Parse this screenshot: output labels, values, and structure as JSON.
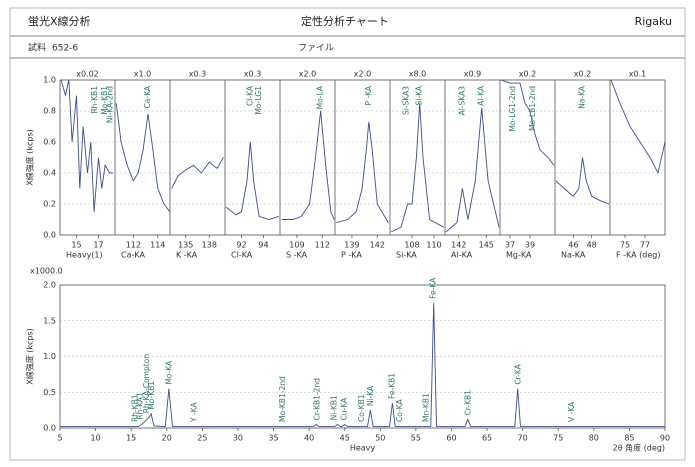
{
  "header": {
    "title": "蛍光X線分析",
    "subtitle": "定性分析チャート",
    "brand": "Rigaku",
    "sample_label": "試料",
    "sample": "652-6",
    "file_label": "ファイル"
  },
  "chart_data": [
    {
      "type": "line",
      "ylabel": "X線強度 (kcps)",
      "ylim": [
        0,
        1
      ],
      "yticks": [
        {
          "value": 0,
          "label": "0.0"
        },
        0.2,
        0.4,
        0.6,
        0.8,
        {
          "value": 1,
          "label": "1.0"
        }
      ],
      "panels": [
        {
          "scale": "x0.02",
          "xlabel": "Heavy(1)",
          "xlim": [
            13.5,
            18.5
          ],
          "xticks": [
            15,
            17
          ],
          "x": [
            13.6,
            14,
            14.3,
            14.6,
            15,
            15.3,
            15.6,
            16,
            16.3,
            16.6,
            17,
            17.3,
            17.6,
            18,
            18.3
          ],
          "values": [
            1.0,
            0.9,
            1.0,
            0.6,
            0.9,
            0.3,
            0.7,
            0.4,
            0.6,
            0.15,
            0.5,
            0.3,
            0.45,
            0.4,
            0.4
          ],
          "annotations": [
            {
              "text": "Rh-KB1",
              "x": 16.7
            },
            {
              "text": "Mo-KB1",
              "x": 17.6
            },
            {
              "text": "Ni-KA-2nd",
              "x": 18.1
            }
          ]
        },
        {
          "scale": "x1.0",
          "xlabel": "Ca-KA",
          "xlim": [
            110.5,
            115
          ],
          "xticks": [
            112,
            114
          ],
          "x": [
            110.6,
            111,
            111.5,
            112,
            112.4,
            112.8,
            113.2,
            113.6,
            114,
            114.5,
            115
          ],
          "values": [
            0.85,
            0.6,
            0.45,
            0.35,
            0.4,
            0.55,
            0.78,
            0.55,
            0.3,
            0.2,
            0.15
          ],
          "annotations": [
            {
              "text": "Ca-KA",
              "x": 113.2
            }
          ]
        },
        {
          "scale": "x0.3",
          "xlabel": "K -KA",
          "xlim": [
            133,
            140
          ],
          "xticks": [
            135,
            138
          ],
          "x": [
            133.2,
            134,
            135,
            136,
            137,
            138,
            139,
            139.8
          ],
          "values": [
            0.3,
            0.38,
            0.42,
            0.45,
            0.4,
            0.47,
            0.43,
            0.5
          ],
          "annotations": []
        },
        {
          "scale": "x0.3",
          "xlabel": "Cl-KA",
          "xlim": [
            90.5,
            95.5
          ],
          "xticks": [
            92,
            94
          ],
          "x": [
            90.6,
            91.5,
            92,
            92.5,
            92.8,
            93.1,
            93.6,
            94.5,
            95.4
          ],
          "values": [
            0.18,
            0.13,
            0.15,
            0.35,
            0.6,
            0.35,
            0.12,
            0.1,
            0.12
          ],
          "annotations": [
            {
              "text": "Cl-KA",
              "x": 92.8
            },
            {
              "text": "Mo-LG1",
              "x": 93.6
            }
          ]
        },
        {
          "scale": "x2.0",
          "xlabel": "S -KA",
          "xlim": [
            107,
            113.5
          ],
          "xticks": [
            109,
            112
          ],
          "x": [
            107.2,
            108.5,
            109.5,
            110.5,
            111.2,
            111.8,
            112.4,
            113,
            113.4
          ],
          "values": [
            0.1,
            0.1,
            0.12,
            0.2,
            0.5,
            0.8,
            0.45,
            0.15,
            0.1
          ],
          "annotations": [
            {
              "text": "Mo-LA",
              "x": 111.8
            }
          ]
        },
        {
          "scale": "x2.0",
          "xlabel": "P -KA",
          "xlim": [
            137,
            143.5
          ],
          "xticks": [
            139,
            142
          ],
          "x": [
            137.2,
            138.5,
            139.5,
            140.2,
            140.7,
            141,
            141.4,
            142,
            143.3
          ],
          "values": [
            0.08,
            0.1,
            0.15,
            0.3,
            0.55,
            0.73,
            0.55,
            0.2,
            0.08
          ],
          "annotations": [
            {
              "text": "P -KA",
              "x": 141
            }
          ]
        },
        {
          "scale": "x8.0",
          "xlabel": "Si-KA",
          "xlim": [
            106,
            111
          ],
          "xticks": [
            108,
            110
          ],
          "x": [
            106.1,
            107,
            107.6,
            108,
            108.4,
            108.7,
            109,
            109.6,
            110.9
          ],
          "values": [
            0.02,
            0.05,
            0.2,
            0.2,
            0.5,
            0.85,
            0.5,
            0.1,
            0.05
          ],
          "annotations": [
            {
              "text": "Si-KA",
              "x": 108.7
            },
            {
              "text": "Si-SKA3",
              "x": 107.5
            }
          ]
        },
        {
          "scale": "x0.9",
          "xlabel": "Al-KA",
          "xlim": [
            140.5,
            146.5
          ],
          "xticks": [
            142,
            145
          ],
          "x": [
            140.6,
            141.8,
            142.4,
            143,
            143.8,
            144.5,
            145.2,
            146.4
          ],
          "values": [
            0.02,
            0.08,
            0.3,
            0.1,
            0.35,
            0.82,
            0.35,
            0.05
          ],
          "annotations": [
            {
              "text": "Al-KA",
              "x": 144.5
            },
            {
              "text": "Al-SKA3",
              "x": 142.4
            }
          ]
        },
        {
          "scale": "x0.2",
          "xlabel": "Mg-KA",
          "xlim": [
            36,
            41.5
          ],
          "xticks": [
            37,
            39
          ],
          "x": [
            36.1,
            37,
            38,
            38.5,
            39,
            39.5,
            40,
            40.8,
            41.4
          ],
          "values": [
            1.0,
            0.98,
            0.98,
            0.85,
            0.8,
            0.65,
            0.55,
            0.5,
            0.45
          ],
          "annotations": [
            {
              "text": "Mo-LG1-2nd",
              "x": 37.3
            },
            {
              "text": "Mo-LB1-2nd",
              "x": 39.3
            }
          ]
        },
        {
          "scale": "x0.2",
          "xlabel": "Na-KA",
          "xlim": [
            44,
            50
          ],
          "xticks": [
            46,
            48
          ],
          "x": [
            44.1,
            45,
            46,
            46.6,
            47,
            47.4,
            48,
            49,
            49.9
          ],
          "values": [
            0.35,
            0.3,
            0.25,
            0.3,
            0.5,
            0.35,
            0.25,
            0.22,
            0.2
          ],
          "annotations": [
            {
              "text": "Na-KA",
              "x": 47
            }
          ]
        },
        {
          "scale": "x0.1",
          "xlabel": "F -KA  (deg)",
          "xlim": [
            73.5,
            79
          ],
          "xticks": [
            75,
            77
          ],
          "x": [
            73.6,
            74.5,
            75.5,
            76.5,
            77.5,
            78.3,
            79
          ],
          "values": [
            1.0,
            0.85,
            0.7,
            0.6,
            0.5,
            0.4,
            0.6
          ],
          "annotations": []
        }
      ]
    },
    {
      "type": "line",
      "ylabel": "X線強度 (kcps)",
      "yscale_label": "x1000.0",
      "xlabel": "Heavy",
      "xlabel2": "2θ 角度 (deg)",
      "xlim": [
        5,
        90
      ],
      "xticks": [
        5,
        10,
        15,
        20,
        25,
        30,
        35,
        40,
        45,
        50,
        55,
        60,
        65,
        70,
        75,
        80,
        85,
        90
      ],
      "ylim": [
        0,
        2
      ],
      "yticks": [
        {
          "value": 0,
          "label": "0.0"
        },
        0.5,
        {
          "value": 1,
          "label": "1.0"
        },
        1.5,
        {
          "value": 2,
          "label": "2.0"
        }
      ],
      "x": [
        5,
        16,
        16.6,
        17,
        17.5,
        17.8,
        18.2,
        19.8,
        20.3,
        20.8,
        40.6,
        41,
        41.4,
        43.6,
        44,
        44.4,
        44.6,
        45,
        45.4,
        48.2,
        48.6,
        49,
        51.3,
        51.7,
        52.1,
        57.1,
        57.5,
        57.9,
        61.9,
        62.3,
        62.7,
        68.9,
        69.3,
        69.7,
        90
      ],
      "values": [
        0.02,
        0.02,
        0.06,
        0.1,
        0.15,
        0.2,
        0.03,
        0.02,
        0.55,
        0.02,
        0.02,
        0.05,
        0.02,
        0.02,
        0.05,
        0.02,
        0.02,
        0.05,
        0.02,
        0.02,
        0.25,
        0.02,
        0.02,
        0.35,
        0.02,
        0.02,
        1.75,
        0.02,
        0.02,
        0.12,
        0.02,
        0.02,
        0.55,
        0.02,
        0.02
      ],
      "annotations": [
        {
          "text": "Rh-KB1",
          "x": 15.6
        },
        {
          "text": "Rh-KA1",
          "x": 16.3
        },
        {
          "text": "Rh-KA-Compton",
          "x": 17.2
        },
        {
          "text": "Mo-KB1",
          "x": 17.9
        },
        {
          "text": "Mo-KA",
          "x": 20.4
        },
        {
          "text": "Y -KA",
          "x": 23.9
        },
        {
          "text": "Mo-KB1-2nd",
          "x": 36.3
        },
        {
          "text": "Cr-KB1-2nd",
          "x": 41.2
        },
        {
          "text": "Ni-KB1",
          "x": 43.6
        },
        {
          "text": "Cu-KA",
          "x": 45
        },
        {
          "text": "Co-KB1",
          "x": 47.4
        },
        {
          "text": "Ni-KA",
          "x": 48.7
        },
        {
          "text": "Fe-KB1",
          "x": 51.7
        },
        {
          "text": "Co-KA",
          "x": 52.8
        },
        {
          "text": "Mn-KB1",
          "x": 56.5
        },
        {
          "text": "Fe-KA",
          "x": 57.5
        },
        {
          "text": "Cr-KB1",
          "x": 62.4
        },
        {
          "text": "Cr-KA",
          "x": 69.4
        },
        {
          "text": "V -KA",
          "x": 76.9
        }
      ]
    }
  ]
}
